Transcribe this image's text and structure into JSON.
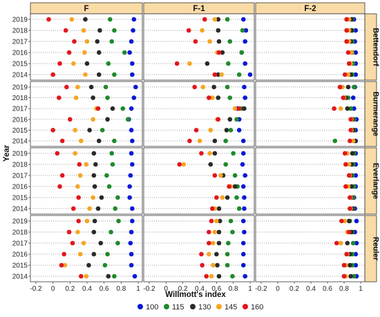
{
  "chart_data": {
    "type": "scatter",
    "xlabel": "Willmott's index",
    "ylabel": "Year",
    "xlim": [
      -0.2,
      1.0
    ],
    "x_ticks": [
      "-0.2",
      "0",
      "0.2",
      "0.4",
      "0.6",
      "0.8",
      "1"
    ],
    "years": [
      "2019",
      "2018",
      "2017",
      "2016",
      "2015",
      "2014"
    ],
    "columns": [
      "F",
      "F-1",
      "F-2"
    ],
    "rows": [
      "Bettendorf",
      "Burmerange",
      "Everlange",
      "Reuler"
    ],
    "series_order": [
      "100",
      "115",
      "130",
      "145",
      "160"
    ],
    "colors": {
      "100": "#0b18d6",
      "115": "#1f8a2b",
      "130": "#2a2a2a",
      "145": "#f5a623",
      "160": "#e3161d"
    },
    "grid": true,
    "legend_position": "bottom",
    "points": {
      "Bettendorf": {
        "F": {
          "2019": {
            "100": 0.95,
            "115": 0.67,
            "130": 0.38,
            "145": 0.22,
            "160": -0.05
          },
          "2018": {
            "100": 0.94,
            "115": 0.72,
            "130": 0.55,
            "145": 0.36,
            "160": 0.15
          },
          "2017": {
            "100": 0.92,
            "115": 0.69,
            "130": 0.52,
            "145": 0.4,
            "160": 0.25
          },
          "2016": {
            "100": 0.9,
            "115": 0.84,
            "130": 0.54,
            "145": 0.37,
            "160": 0.19
          },
          "2015": {
            "100": 0.93,
            "115": 0.65,
            "130": 0.4,
            "145": 0.24,
            "160": 0.08
          },
          "2014": {
            "100": 0.93,
            "115": 0.72,
            "130": 0.54,
            "145": 0.38,
            "160": 0.0
          }
        },
        "F-1": {
          "2019": {
            "100": 0.92,
            "115": 0.73,
            "130": 0.62,
            "145": 0.58,
            "160": 0.46
          },
          "2018": {
            "100": 0.95,
            "115": 0.91,
            "130": 0.62,
            "145": 0.43,
            "160": 0.27
          },
          "2017": {
            "100": 0.94,
            "115": 0.76,
            "130": 0.63,
            "145": 0.52,
            "160": 0.35
          },
          "2016": {
            "100": 0.9,
            "115": 0.9,
            "130": 0.67,
            "145": 0.61,
            "160": 0.63
          },
          "2015": {
            "100": 0.94,
            "115": 0.74,
            "130": 0.49,
            "145": 0.28,
            "160": 0.13
          },
          "2014": {
            "100": 1.0,
            "115": 0.87,
            "130": 0.62,
            "145": 0.66,
            "160": 0.58
          }
        },
        "F-2": {
          "2019": {
            "100": 0.92,
            "115": 0.9,
            "130": 0.89,
            "145": 0.86,
            "160": 0.83
          },
          "2018": {
            "100": 0.94,
            "115": 0.9,
            "130": 0.89,
            "145": 0.86,
            "160": 0.83
          },
          "2017": {
            "100": 0.93,
            "115": 0.9,
            "130": 0.88,
            "145": 0.86,
            "160": 0.83
          },
          "2016": {
            "100": 0.94,
            "115": 0.9,
            "130": 0.89,
            "145": 0.89,
            "160": 0.85
          },
          "2015": {
            "100": 0.94,
            "115": 0.91,
            "130": 0.88,
            "145": 0.88,
            "160": 0.86
          },
          "2014": {
            "100": 0.94,
            "115": 0.9,
            "130": 0.88,
            "145": 0.85,
            "160": 0.81
          }
        }
      },
      "Burmerange": {
        "F": {
          "2019": {
            "100": 0.97,
            "115": 0.62,
            "130": 0.45,
            "145": 0.29,
            "160": 0.16
          },
          "2018": {
            "100": 0.95,
            "115": 0.64,
            "130": 0.47,
            "145": 0.27,
            "160": 0.07
          },
          "2017": {
            "100": 0.92,
            "115": 0.82,
            "130": 0.7,
            "145": 0.51,
            "160": 0.53
          },
          "2016": {
            "100": 0.89,
            "115": 0.88,
            "130": 0.64,
            "145": 0.47,
            "160": 0.2
          },
          "2015": {
            "100": 0.92,
            "115": 0.58,
            "130": 0.43,
            "145": 0.26,
            "160": 0.0
          },
          "2014": {
            "100": 0.93,
            "115": 0.72,
            "130": 0.54,
            "145": 0.33,
            "160": 0.11
          }
        },
        "F-1": {
          "2019": {
            "100": 0.93,
            "115": 0.73,
            "130": 0.57,
            "145": 0.44,
            "160": 0.34
          },
          "2018": {
            "100": 0.94,
            "115": 0.76,
            "130": 0.62,
            "145": 0.55,
            "160": 0.51
          },
          "2017": {
            "100": 0.85,
            "115": 0.9,
            "130": 0.93,
            "145": 0.82,
            "160": 0.87
          },
          "2016": {
            "100": 0.87,
            "115": 0.84,
            "130": 0.76,
            "145": 0.61,
            "160": 0.62
          },
          "2015": {
            "100": 0.87,
            "115": 0.77,
            "130": 0.72,
            "145": 0.53,
            "160": 0.36
          },
          "2014": {
            "100": 0.92,
            "115": 0.71,
            "130": 0.58,
            "145": 0.4,
            "160": 0.28
          }
        },
        "F-2": {
          "2019": {
            "100": 0.93,
            "115": 0.92,
            "130": 0.85,
            "145": 0.78,
            "160": 0.75
          },
          "2018": {
            "100": 0.91,
            "115": 0.85,
            "130": 0.82,
            "145": 0.8,
            "160": 0.79
          },
          "2017": {
            "100": 0.92,
            "115": 0.88,
            "130": 0.84,
            "145": 0.76,
            "160": 0.68
          },
          "2016": {
            "100": 0.95,
            "115": 0.92,
            "130": 0.9,
            "145": 0.89,
            "160": 0.88
          },
          "2015": {
            "100": 0.94,
            "115": 0.92,
            "130": 0.91,
            "145": 0.89,
            "160": 0.88
          },
          "2014": {
            "100": 0.94,
            "115": 0.69,
            "130": 0.93,
            "145": 0.91,
            "160": 0.87
          }
        }
      },
      "Everlange": {
        "F": {
          "2019": {
            "100": 0.92,
            "115": 0.69,
            "130": 0.48,
            "145": 0.26,
            "160": 0.05
          },
          "2018": {
            "100": 0.93,
            "115": 0.7,
            "130": 0.5,
            "145": 0.39,
            "160": 0.31
          },
          "2017": {
            "100": 0.91,
            "115": 0.63,
            "130": 0.48,
            "145": 0.32,
            "160": 0.11
          },
          "2016": {
            "100": 0.9,
            "115": 0.66,
            "130": 0.49,
            "145": 0.29,
            "160": 0.08
          },
          "2015": {
            "100": 0.9,
            "115": 0.76,
            "130": 0.57,
            "145": 0.47,
            "160": 0.3
          },
          "2014": {
            "100": 0.93,
            "115": 0.73,
            "130": 0.53,
            "145": 0.43,
            "160": 0.24
          }
        },
        "F-1": {
          "2019": {
            "100": 0.92,
            "115": 0.8,
            "130": 0.58,
            "145": 0.52,
            "160": 0.42
          },
          "2018": {
            "100": 0.91,
            "115": 0.71,
            "130": 0.53,
            "145": 0.21,
            "160": 0.16
          },
          "2017": {
            "100": 0.94,
            "115": 0.82,
            "130": 0.68,
            "145": 0.65,
            "160": 0.58
          },
          "2016": {
            "100": 0.92,
            "115": 0.85,
            "130": 0.82,
            "145": 0.77,
            "160": 0.75
          },
          "2015": {
            "100": 0.93,
            "115": 0.84,
            "130": 0.73,
            "145": 0.67,
            "160": 0.6
          },
          "2014": {
            "100": 0.93,
            "115": 0.87,
            "130": 0.63,
            "145": 0.58,
            "160": 0.55
          }
        },
        "F-2": {
          "2019": {
            "100": 0.94,
            "115": 0.92,
            "130": 0.9,
            "145": 0.84,
            "160": 0.81
          },
          "2018": {
            "100": 0.94,
            "115": 0.91,
            "130": 0.89,
            "145": 0.86,
            "160": 0.82
          },
          "2017": {
            "100": 0.94,
            "115": 0.9,
            "130": 0.88,
            "145": 0.87,
            "160": 0.86
          },
          "2016": {
            "100": 0.94,
            "115": 0.92,
            "130": 0.89,
            "145": 0.85,
            "160": 0.82
          },
          "2015": {
            "100": 0.92,
            "115": 0.91,
            "130": 0.89,
            "145": 0.88,
            "160": 0.87
          },
          "2014": {
            "100": 0.93,
            "115": 0.91,
            "130": 0.9,
            "145": 0.88,
            "160": 0.87
          }
        }
      },
      "Reuler": {
        "F": {
          "2019": {
            "100": 0.93,
            "115": 0.77,
            "130": 0.49,
            "145": 0.4,
            "160": 0.3
          },
          "2018": {
            "100": 0.92,
            "115": 0.68,
            "130": 0.48,
            "145": 0.29,
            "160": 0.19
          },
          "2017": {
            "100": 0.91,
            "115": 0.76,
            "130": 0.56,
            "145": 0.36,
            "160": 0.23
          },
          "2016": {
            "100": 0.92,
            "115": 0.64,
            "130": 0.48,
            "145": 0.32,
            "160": 0.13
          },
          "2015": {
            "100": 0.92,
            "115": 0.61,
            "130": 0.42,
            "145": 0.14,
            "160": 0.1
          },
          "2014": {
            "100": 0.96,
            "115": 0.72,
            "130": 0.65,
            "145": 0.39,
            "160": 0.33
          }
        },
        "F-1": {
          "2019": {
            "100": 0.92,
            "115": 0.77,
            "130": 0.64,
            "145": 0.6,
            "160": 0.54
          },
          "2018": {
            "100": 0.93,
            "115": 0.79,
            "130": 0.63,
            "145": 0.58,
            "160": 0.51
          },
          "2017": {
            "100": 0.92,
            "115": 0.74,
            "130": 0.63,
            "145": 0.56,
            "160": 0.51
          },
          "2016": {
            "100": 0.92,
            "115": 0.73,
            "130": 0.6,
            "145": 0.51,
            "160": 0.42
          },
          "2015": {
            "100": 0.92,
            "115": 0.73,
            "130": 0.61,
            "145": 0.56,
            "160": 0.43
          },
          "2014": {
            "100": 0.94,
            "115": 0.79,
            "130": 0.63,
            "145": 0.54,
            "160": 0.48
          }
        },
        "F-2": {
          "2019": {
            "100": 0.95,
            "115": 0.87,
            "130": 0.86,
            "145": 0.81,
            "160": 0.77
          },
          "2018": {
            "100": 0.93,
            "115": 0.9,
            "130": 0.89,
            "145": 0.84,
            "160": 0.86
          },
          "2017": {
            "100": 0.95,
            "115": 0.91,
            "130": 0.84,
            "145": 0.76,
            "160": 0.71
          },
          "2016": {
            "100": 0.94,
            "115": 0.9,
            "130": 0.87,
            "145": 0.84,
            "160": 0.83
          },
          "2015": {
            "100": 0.94,
            "115": 0.9,
            "130": 0.87,
            "145": 0.82,
            "160": 0.8
          },
          "2014": {
            "100": 0.95,
            "115": 0.92,
            "130": 0.88,
            "145": 0.82,
            "160": 0.8
          }
        }
      }
    }
  }
}
